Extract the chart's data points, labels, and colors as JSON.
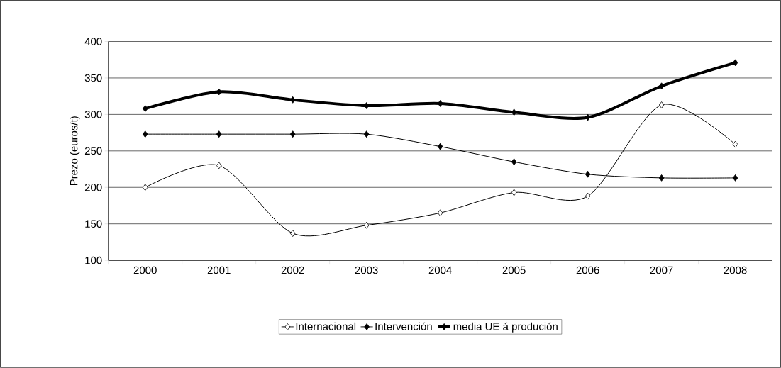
{
  "chart_data": {
    "type": "line",
    "ylabel": "Prezo (euros/t)",
    "categories": [
      "2000",
      "2001",
      "2002",
      "2003",
      "2004",
      "2005",
      "2006",
      "2007",
      "2008"
    ],
    "series": [
      {
        "name": "Internacional",
        "color": "#000000",
        "values": [
          200,
          230,
          137,
          148,
          165,
          193,
          188,
          313,
          259
        ]
      },
      {
        "name": "Intervención",
        "color": "#000000",
        "values": [
          273,
          273,
          273,
          273,
          256,
          235,
          218,
          213,
          213
        ]
      },
      {
        "name": "media UE á produción",
        "color": "#000000",
        "values": [
          308,
          331,
          320,
          312,
          315,
          303,
          296,
          339,
          371
        ]
      }
    ],
    "ylim": [
      100,
      400
    ],
    "yticks": [
      100,
      150,
      200,
      250,
      300,
      350,
      400
    ],
    "grid": "y",
    "legend": "bottom",
    "marker": "diamond",
    "line_style": "solid"
  }
}
